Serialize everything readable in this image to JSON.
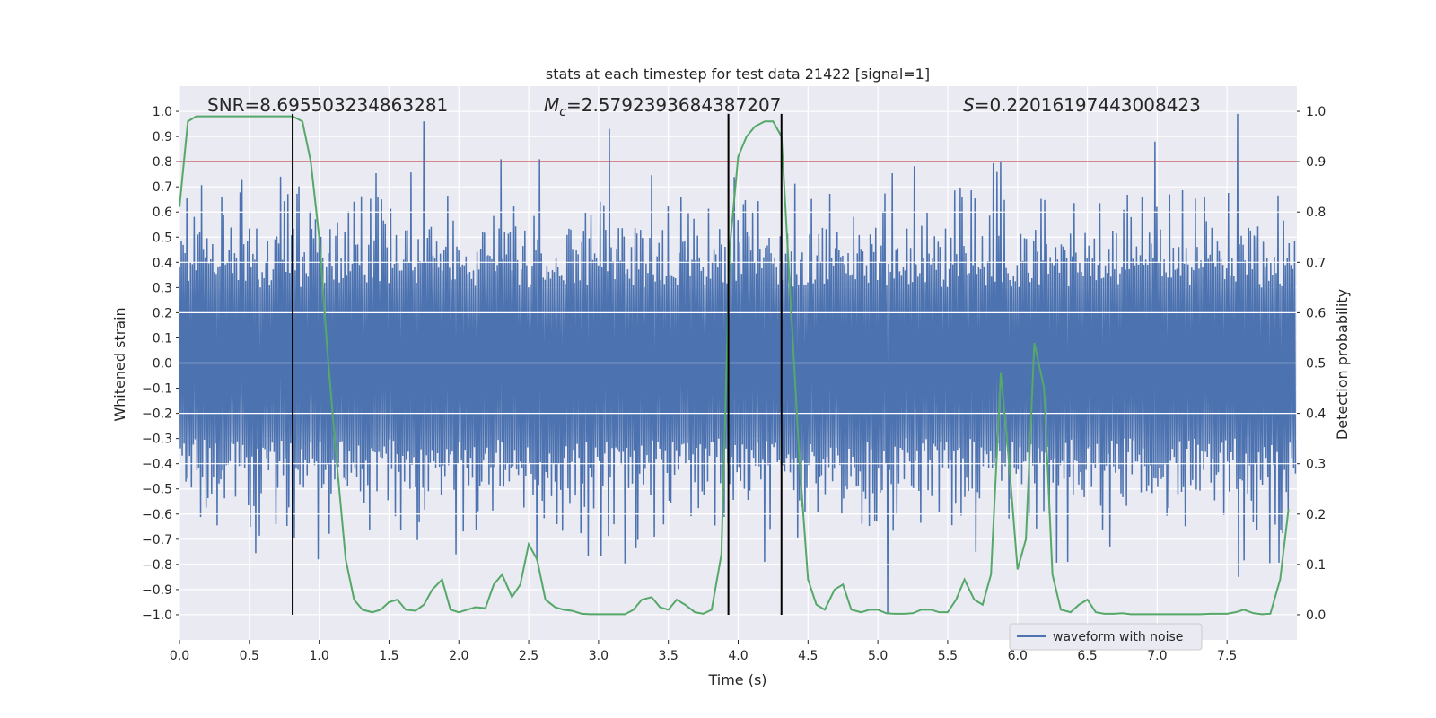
{
  "chart_data": {
    "type": "line",
    "title": "stats at each timestep for test data 21422 [signal=1]",
    "xlabel": "Time (s)",
    "ylabel": "Whitened strain",
    "y2label": "Detection probability",
    "xlim": [
      0.0,
      8.0
    ],
    "ylim": [
      -1.1,
      1.1
    ],
    "y2lim": [
      -0.05,
      1.05
    ],
    "x_ticks": [
      0.0,
      0.5,
      1.0,
      1.5,
      2.0,
      2.5,
      3.0,
      3.5,
      4.0,
      4.5,
      5.0,
      5.5,
      6.0,
      6.5,
      7.0,
      7.5
    ],
    "y_ticks": [
      1.0,
      0.9,
      0.8,
      0.7,
      0.6,
      0.5,
      0.4,
      0.3,
      0.2,
      0.1,
      0.0,
      -0.1,
      -0.2,
      -0.3,
      -0.4,
      -0.5,
      -0.6,
      -0.7,
      -0.8,
      -0.9,
      -1.0
    ],
    "y2_ticks": [
      1.0,
      0.9,
      0.8,
      0.7,
      0.6,
      0.5,
      0.4,
      0.3,
      0.2,
      0.1,
      0.0
    ],
    "grid": true,
    "annotations": {
      "snr": "SNR=8.695503234863281",
      "mc_prefix": "M",
      "mc_sub": "c",
      "mc_value": "=2.5792393684387207",
      "s_prefix": "S",
      "s_value": "=0.22016197443008423"
    },
    "threshold": {
      "y2": 0.9,
      "color": "#c44e52"
    },
    "vertical_lines": {
      "x": [
        0.81,
        3.93,
        4.31
      ],
      "ymin": -1.0,
      "ymax": 0.99,
      "color": "#000000"
    },
    "waveform": {
      "name": "waveform with noise",
      "color": "#4c72b0",
      "n_samples": 1216,
      "x_end": 7.99,
      "spikes": [
        {
          "x": 1.74,
          "y": 0.96
        },
        {
          "x": 2.3,
          "y": 0.81
        },
        {
          "x": 2.58,
          "y": 0.81
        },
        {
          "x": 3.07,
          "y": 0.93
        },
        {
          "x": 6.98,
          "y": 0.88
        },
        {
          "x": 7.57,
          "y": 0.99
        },
        {
          "x": 5.07,
          "y": -1.0
        },
        {
          "x": 4.18,
          "y": -0.79
        },
        {
          "x": 1.98,
          "y": -0.76
        },
        {
          "x": 7.58,
          "y": -0.85
        },
        {
          "x": 0.81,
          "y": -0.7
        },
        {
          "x": 6.35,
          "y": -0.79
        }
      ]
    },
    "probability": {
      "name": "detection probability",
      "color": "#55a868",
      "x": [
        0.0,
        0.06,
        0.12,
        0.19,
        0.25,
        0.31,
        0.38,
        0.44,
        0.5,
        0.56,
        0.62,
        0.69,
        0.75,
        0.81,
        0.88,
        0.94,
        1.0,
        1.06,
        1.12,
        1.19,
        1.25,
        1.31,
        1.38,
        1.44,
        1.5,
        1.56,
        1.62,
        1.69,
        1.75,
        1.81,
        1.88,
        1.94,
        2.0,
        2.06,
        2.12,
        2.19,
        2.25,
        2.31,
        2.38,
        2.44,
        2.5,
        2.56,
        2.62,
        2.69,
        2.75,
        2.81,
        2.88,
        2.94,
        3.0,
        3.06,
        3.12,
        3.19,
        3.25,
        3.31,
        3.38,
        3.44,
        3.5,
        3.56,
        3.62,
        3.69,
        3.75,
        3.81,
        3.88,
        3.94,
        4.0,
        4.06,
        4.12,
        4.19,
        4.25,
        4.31,
        4.38,
        4.44,
        4.5,
        4.56,
        4.62,
        4.69,
        4.75,
        4.81,
        4.88,
        4.94,
        5.0,
        5.06,
        5.12,
        5.19,
        5.25,
        5.31,
        5.38,
        5.44,
        5.5,
        5.56,
        5.62,
        5.69,
        5.75,
        5.81,
        5.88,
        5.94,
        6.0,
        6.06,
        6.12,
        6.19,
        6.25,
        6.31,
        6.38,
        6.44,
        6.5,
        6.56,
        6.62,
        6.69,
        6.75,
        6.81,
        6.88,
        6.94,
        7.0,
        7.06,
        7.12,
        7.19,
        7.25,
        7.31,
        7.38,
        7.44,
        7.5,
        7.56,
        7.62,
        7.69,
        7.75,
        7.81,
        7.88,
        7.94
      ],
      "values": [
        0.81,
        0.98,
        0.99,
        0.99,
        0.99,
        0.99,
        0.99,
        0.99,
        0.99,
        0.99,
        0.99,
        0.99,
        0.99,
        0.99,
        0.98,
        0.9,
        0.75,
        0.52,
        0.32,
        0.11,
        0.03,
        0.01,
        0.005,
        0.01,
        0.025,
        0.03,
        0.01,
        0.008,
        0.02,
        0.05,
        0.07,
        0.01,
        0.005,
        0.01,
        0.015,
        0.013,
        0.06,
        0.08,
        0.035,
        0.06,
        0.14,
        0.11,
        0.03,
        0.015,
        0.01,
        0.008,
        0.002,
        0.001,
        0.001,
        0.001,
        0.001,
        0.001,
        0.01,
        0.03,
        0.035,
        0.015,
        0.01,
        0.03,
        0.02,
        0.005,
        0.002,
        0.01,
        0.12,
        0.73,
        0.91,
        0.95,
        0.97,
        0.98,
        0.98,
        0.95,
        0.6,
        0.3,
        0.07,
        0.02,
        0.01,
        0.05,
        0.06,
        0.01,
        0.005,
        0.01,
        0.01,
        0.003,
        0.002,
        0.002,
        0.003,
        0.01,
        0.01,
        0.005,
        0.005,
        0.03,
        0.07,
        0.03,
        0.02,
        0.08,
        0.48,
        0.3,
        0.09,
        0.15,
        0.54,
        0.45,
        0.08,
        0.01,
        0.005,
        0.02,
        0.03,
        0.005,
        0.002,
        0.002,
        0.003,
        0.001,
        0.001,
        0.001,
        0.001,
        0.001,
        0.001,
        0.001,
        0.001,
        0.001,
        0.002,
        0.002,
        0.002,
        0.005,
        0.01,
        0.003,
        0.001,
        0.002,
        0.07,
        0.21
      ]
    },
    "legend": {
      "position": "bottom-right",
      "entries": [
        "waveform with noise"
      ]
    }
  }
}
